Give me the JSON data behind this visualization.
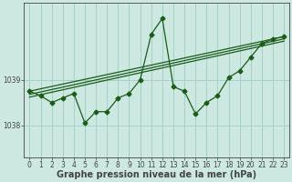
{
  "title": "Graphe pression niveau de la mer (hPa)",
  "bg_color": "#cce8e0",
  "plot_bg_color": "#cce8e0",
  "line_color": "#1a5c1a",
  "grid_color": "#9ecec4",
  "axis_color": "#444444",
  "xlim": [
    -0.5,
    23.5
  ],
  "ylim": [
    1037.3,
    1040.7
  ],
  "yticks": [
    1038,
    1039
  ],
  "xticks": [
    0,
    1,
    2,
    3,
    4,
    5,
    6,
    7,
    8,
    9,
    10,
    11,
    12,
    13,
    14,
    15,
    16,
    17,
    18,
    19,
    20,
    21,
    22,
    23
  ],
  "series_main": {
    "x": [
      0,
      1,
      2,
      3,
      4,
      5,
      6,
      7,
      8,
      9,
      10,
      11,
      12,
      13,
      14,
      15,
      16,
      17,
      18,
      19,
      20,
      21,
      22,
      23
    ],
    "y": [
      1038.75,
      1038.65,
      1038.5,
      1038.6,
      1038.7,
      1038.05,
      1038.3,
      1038.3,
      1038.6,
      1038.7,
      1039.0,
      1040.0,
      1040.35,
      1038.85,
      1038.75,
      1038.25,
      1038.5,
      1038.65,
      1039.05,
      1039.2,
      1039.5,
      1039.8,
      1039.9,
      1039.95
    ]
  },
  "trend_lines": [
    {
      "x0": 0,
      "y0": 1038.75,
      "x1": 23,
      "y1": 1039.95
    },
    {
      "x0": 0,
      "y0": 1038.68,
      "x1": 23,
      "y1": 1039.9
    },
    {
      "x0": 0,
      "y0": 1038.62,
      "x1": 23,
      "y1": 1039.85
    }
  ],
  "marker": "D",
  "markersize": 2.5,
  "linewidth": 0.9,
  "label_fontsize": 7,
  "tick_fontsize": 5.5
}
